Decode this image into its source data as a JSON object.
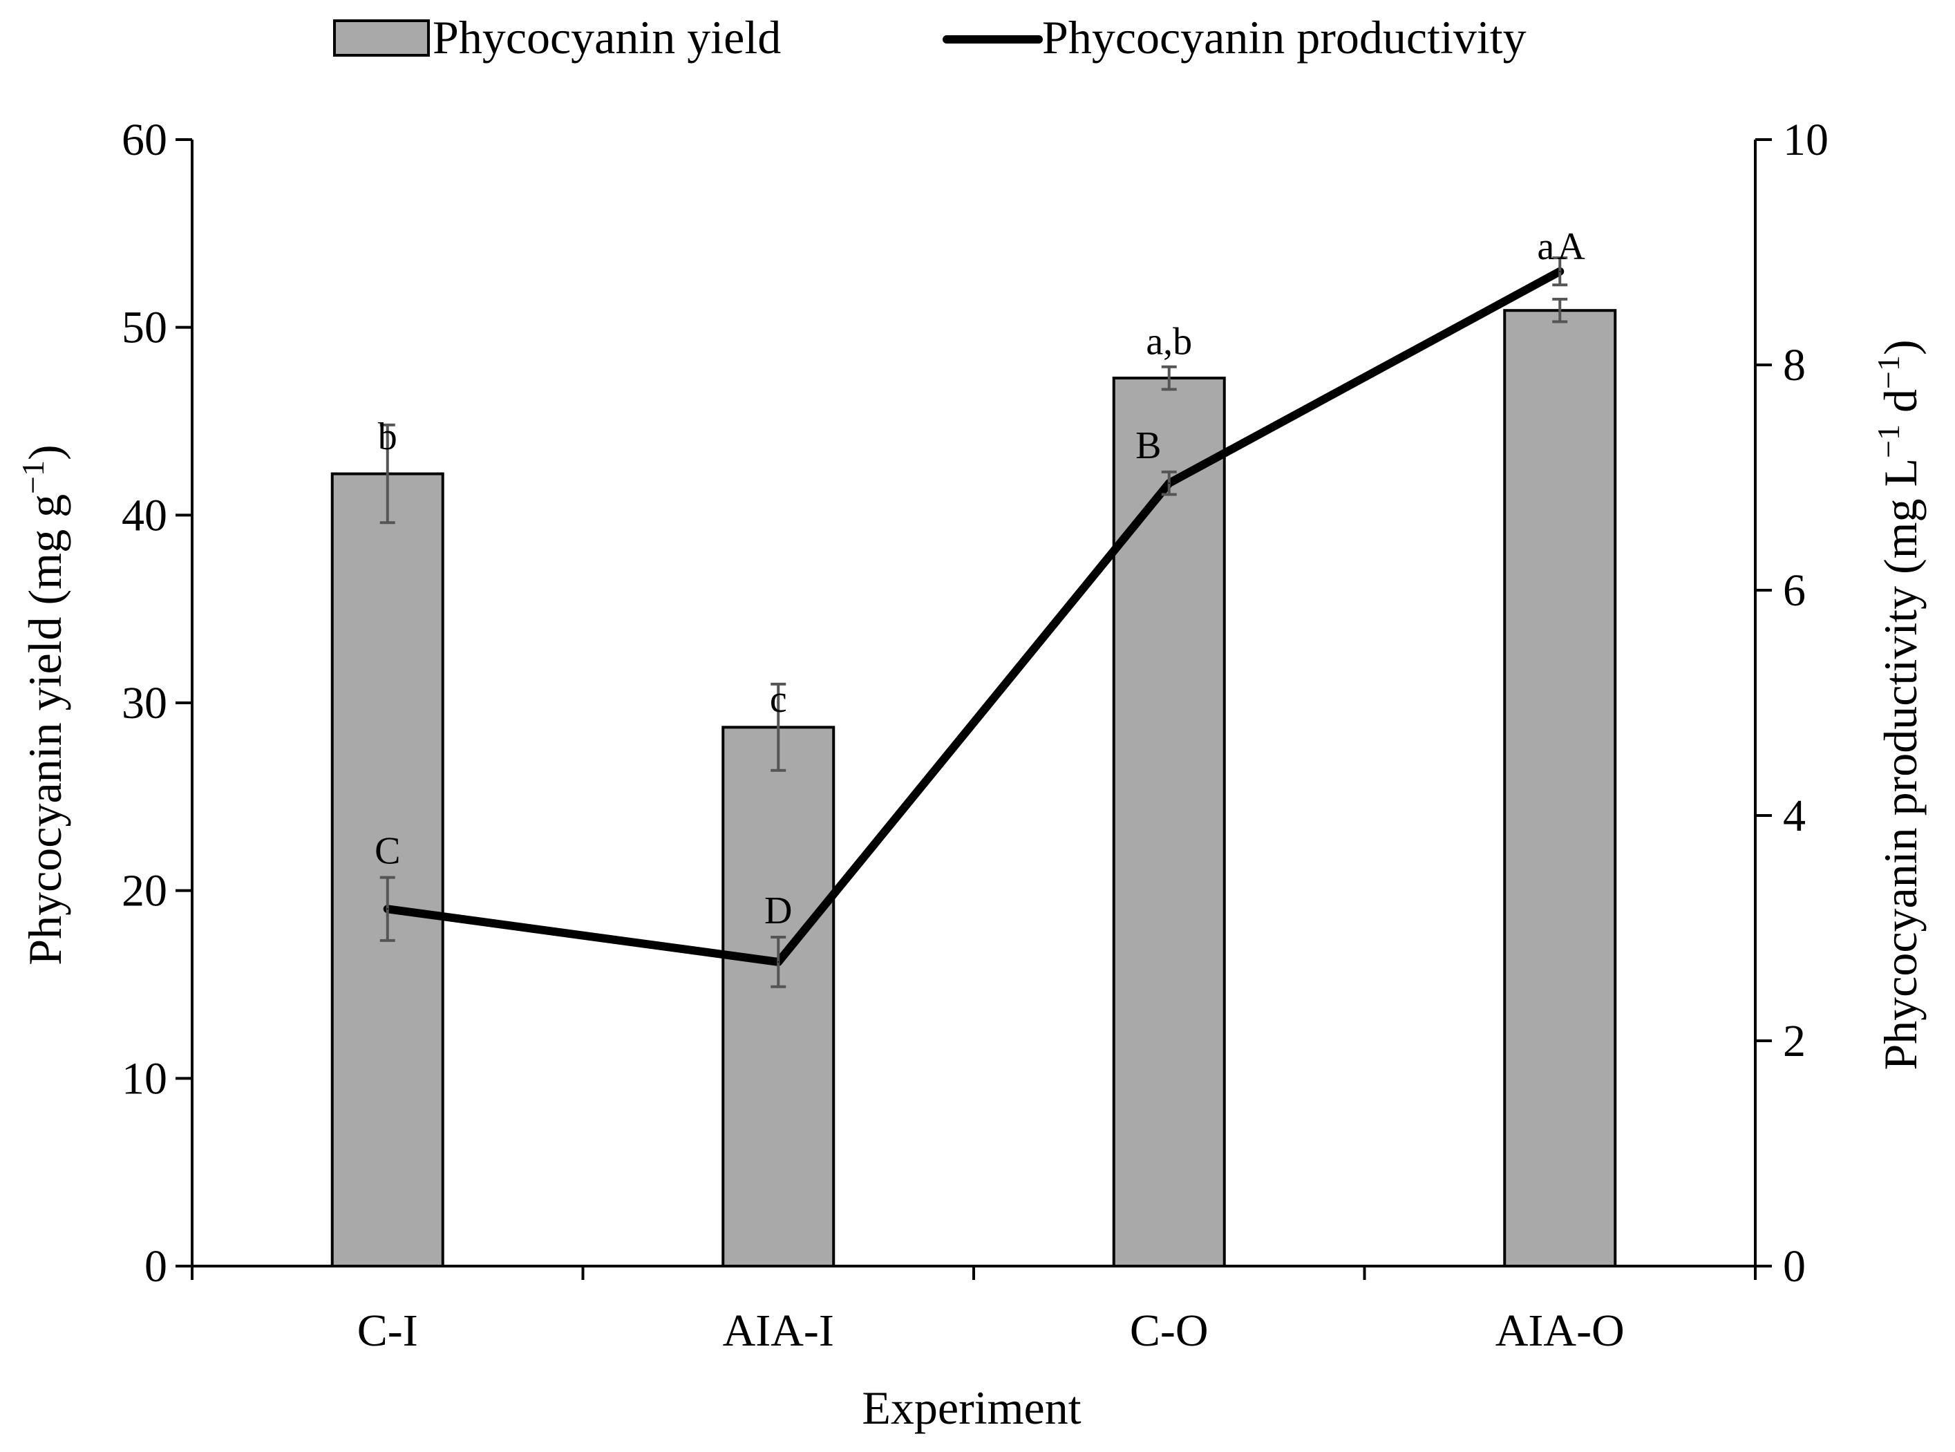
{
  "chart_data": {
    "type": "bar+line",
    "xlabel": "Experiment",
    "categories": [
      "C-I",
      "AIA-I",
      "C-O",
      "AIA-O"
    ],
    "y_left": {
      "label_main": "Phycocyanin yield (mg g",
      "label_sup": "−1",
      "label_close": ")",
      "lim": [
        0,
        60
      ],
      "ticks": [
        0,
        10,
        20,
        30,
        40,
        50,
        60
      ],
      "tick_labels": [
        "0",
        "10",
        "20",
        "30",
        "40",
        "50",
        "60"
      ]
    },
    "y_right": {
      "label_main": "Phycocyanin  productivity (mg L",
      "label_sup1": "−1",
      "label_mid": " d",
      "label_sup2": "−1",
      "label_close": ")",
      "lim": [
        0,
        10
      ],
      "ticks": [
        0,
        2,
        4,
        6,
        8,
        10
      ],
      "tick_labels": [
        "0",
        "2",
        "4",
        "6",
        "8",
        "10"
      ]
    },
    "series": [
      {
        "name": "Phycocyanin yield",
        "kind": "bar",
        "axis": "left",
        "color": "#a9a9a9",
        "values": [
          42.2,
          28.7,
          47.3,
          50.9
        ],
        "errors": [
          2.6,
          2.3,
          0.6,
          0.6
        ],
        "sig_labels": [
          "b",
          "c",
          "a,b",
          "a"
        ]
      },
      {
        "name": "Phycocyanin productivity",
        "kind": "line",
        "axis": "right",
        "color": "#000000",
        "values": [
          3.17,
          2.7,
          6.95,
          8.83
        ],
        "errors": [
          0.28,
          0.22,
          0.1,
          0.12
        ],
        "sig_labels": [
          "C",
          "D",
          "B",
          "A"
        ]
      }
    ],
    "legend": {
      "position": "top-center",
      "bar_label": "Phycocyanin yield",
      "line_label": "Phycocyanin productivity"
    }
  }
}
